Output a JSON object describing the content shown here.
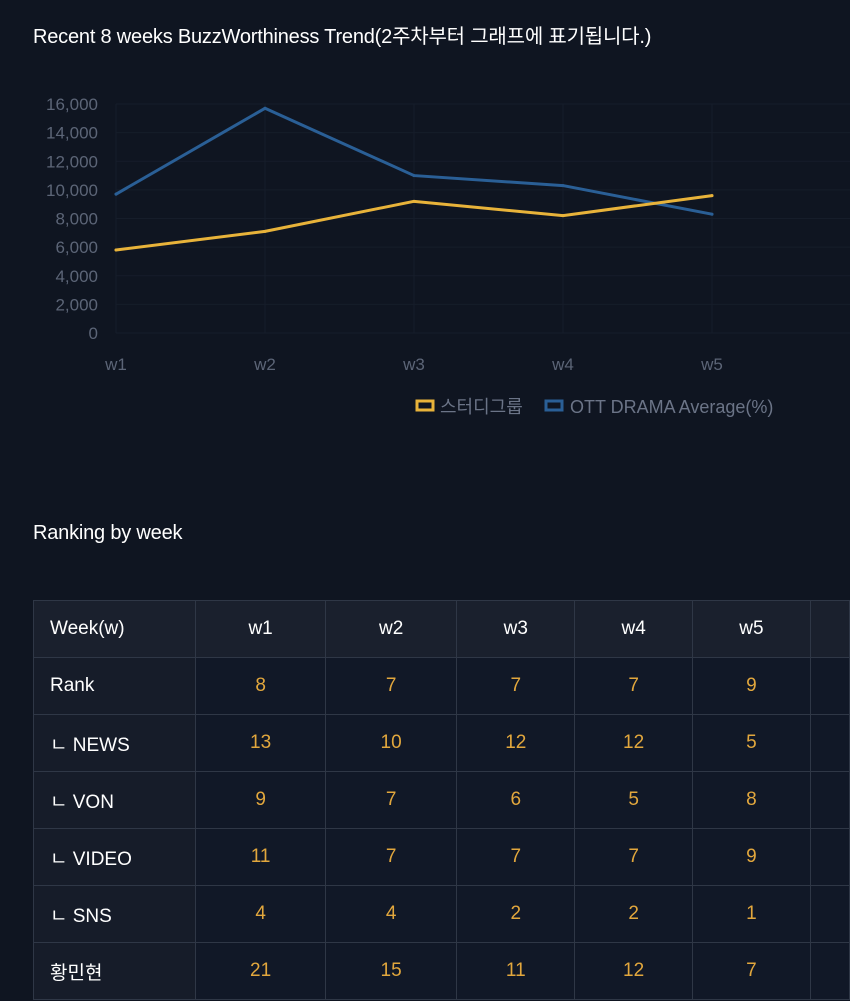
{
  "chart_title": "Recent 8 weeks BuzzWorthiness Trend(2주차부터 그래프에 표기됩니다.)",
  "chart_data": {
    "type": "line",
    "title": "Recent 8 weeks BuzzWorthiness Trend(2주차부터 그래프에 표기됩니다.)",
    "x": [
      "w1",
      "w2",
      "w3",
      "w4",
      "w5"
    ],
    "ylim": [
      0,
      16000
    ],
    "yticks": [
      0,
      2000,
      4000,
      6000,
      8000,
      10000,
      12000,
      14000,
      16000
    ],
    "ytick_labels": [
      "0",
      "2,000",
      "4,000",
      "6,000",
      "8,000",
      "10,000",
      "12,000",
      "14,000",
      "16,000"
    ],
    "legend_position": "bottom-right",
    "series": [
      {
        "name": "스터디그룹",
        "color": "#e8b33a",
        "values": [
          5800,
          7100,
          9200,
          8200,
          9600
        ]
      },
      {
        "name": "OTT DRAMA Average(%)",
        "color": "#2a5f96",
        "values": [
          9700,
          15700,
          11000,
          10300,
          8300
        ]
      }
    ]
  },
  "ranking": {
    "title": "Ranking by week",
    "header": [
      "Week(w)",
      "w1",
      "w2",
      "w3",
      "w4",
      "w5",
      ""
    ],
    "rows": [
      {
        "label": "Rank",
        "values": [
          "8",
          "7",
          "7",
          "7",
          "9"
        ]
      },
      {
        "label": "ㄴ NEWS",
        "values": [
          "13",
          "10",
          "12",
          "12",
          "5"
        ]
      },
      {
        "label": "ㄴ VON",
        "values": [
          "9",
          "7",
          "6",
          "5",
          "8"
        ]
      },
      {
        "label": "ㄴ VIDEO",
        "values": [
          "11",
          "7",
          "7",
          "7",
          "9"
        ]
      },
      {
        "label": "ㄴ SNS",
        "values": [
          "4",
          "4",
          "2",
          "2",
          "1"
        ]
      },
      {
        "label": "황민현",
        "values": [
          "21",
          "15",
          "11",
          "12",
          "7"
        ]
      }
    ]
  }
}
